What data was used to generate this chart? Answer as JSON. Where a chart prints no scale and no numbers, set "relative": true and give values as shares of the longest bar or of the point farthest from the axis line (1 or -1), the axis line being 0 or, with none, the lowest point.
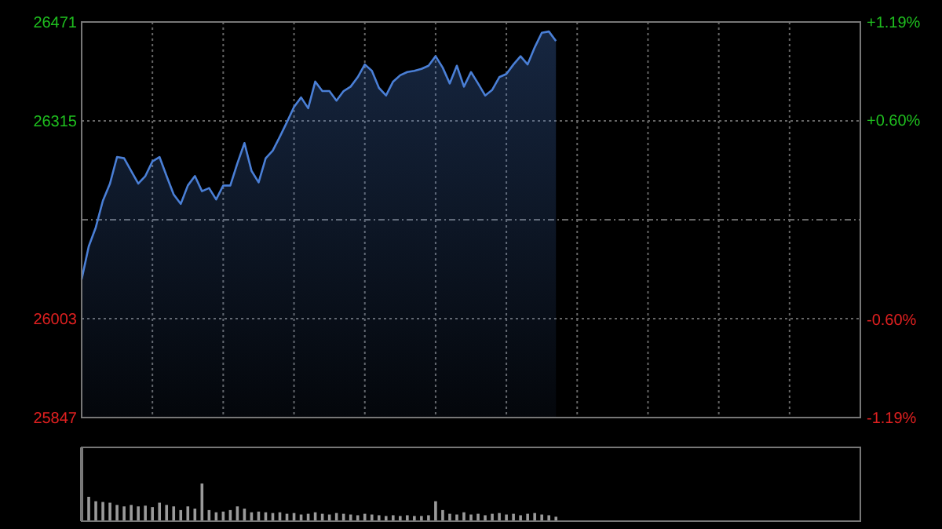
{
  "chart_data": [
    {
      "type": "area",
      "categories": [
        null,
        null,
        null,
        null,
        null,
        null,
        null,
        null,
        null,
        null,
        null,
        null,
        null,
        null,
        null,
        null,
        null,
        null,
        null,
        null,
        null,
        null,
        null,
        null,
        null,
        null,
        null,
        null,
        null,
        null,
        null,
        null,
        null,
        null,
        null,
        null,
        null,
        null,
        null,
        null,
        null,
        null,
        null,
        null,
        null,
        null,
        null,
        null,
        null,
        null,
        null,
        null,
        null,
        null,
        null,
        null,
        null,
        null,
        null,
        null,
        null,
        null,
        null,
        null,
        null,
        null,
        null,
        null
      ],
      "series": [
        {
          "color": "#4a7fd6",
          "values": [
            26065,
            26117,
            26147,
            26189,
            26216,
            26258,
            26256,
            26236,
            26216,
            26228,
            26251,
            26258,
            26228,
            26199,
            26184,
            26213,
            26228,
            26204,
            26209,
            26191,
            26213,
            26213,
            26248,
            26280,
            26236,
            26218,
            26256,
            26268,
            26290,
            26313,
            26337,
            26352,
            26335,
            26377,
            26362,
            26362,
            26347,
            26362,
            26369,
            26384,
            26404,
            26394,
            26367,
            26355,
            26377,
            26387,
            26392,
            26394,
            26397,
            26402,
            26417,
            26399,
            26374,
            26402,
            26369,
            26392,
            26374,
            26355,
            26364,
            26384,
            26389,
            26404,
            26417,
            26404,
            26431,
            26454,
            26456,
            26441
          ]
        }
      ],
      "ylim": [
        25847,
        26471
      ],
      "yticks": [
        25847,
        26003,
        {
          "value": 26159,
          "label": null
        },
        26315,
        26471
      ],
      "y2lim": [
        -1.19,
        1.19
      ],
      "y2ticks": [
        {
          "value": -1.19,
          "label": "-1.19%"
        },
        {
          "value": -0.6,
          "label": "-0.60%"
        },
        {
          "value": 0.6,
          "label": "+0.60%"
        },
        {
          "value": 1.19,
          "label": "+1.19%"
        }
      ],
      "grid": true
    },
    {
      "type": "bar",
      "relative": true,
      "categories": [
        null,
        null,
        null,
        null,
        null,
        null,
        null,
        null,
        null,
        null,
        null,
        null,
        null,
        null,
        null,
        null,
        null,
        null,
        null,
        null,
        null,
        null,
        null,
        null,
        null,
        null,
        null,
        null,
        null,
        null,
        null,
        null,
        null,
        null,
        null,
        null,
        null,
        null,
        null,
        null,
        null,
        null,
        null,
        null,
        null,
        null,
        null,
        null,
        null,
        null,
        null,
        null,
        null,
        null,
        null,
        null,
        null,
        null,
        null,
        null,
        null,
        null,
        null,
        null,
        null,
        null,
        null,
        null
      ],
      "series": [
        {
          "color": "#9a9a9a",
          "values": [
            1,
            0.33,
            0.27,
            0.26,
            0.25,
            0.22,
            0.2,
            0.22,
            0.2,
            0.21,
            0.19,
            0.25,
            0.22,
            0.2,
            0.15,
            0.2,
            0.17,
            0.51,
            0.15,
            0.12,
            0.13,
            0.15,
            0.2,
            0.17,
            0.12,
            0.13,
            0.12,
            0.11,
            0.12,
            0.1,
            0.11,
            0.09,
            0.1,
            0.12,
            0.1,
            0.09,
            0.11,
            0.1,
            0.09,
            0.08,
            0.1,
            0.09,
            0.08,
            0.07,
            0.08,
            0.07,
            0.08,
            0.07,
            0.07,
            0.08,
            0.27,
            0.15,
            0.1,
            0.09,
            0.12,
            0.09,
            0.1,
            0.08,
            0.1,
            0.11,
            0.09,
            0.1,
            0.08,
            0.1,
            0.11,
            0.09,
            0.08,
            0.06
          ]
        }
      ]
    }
  ]
}
